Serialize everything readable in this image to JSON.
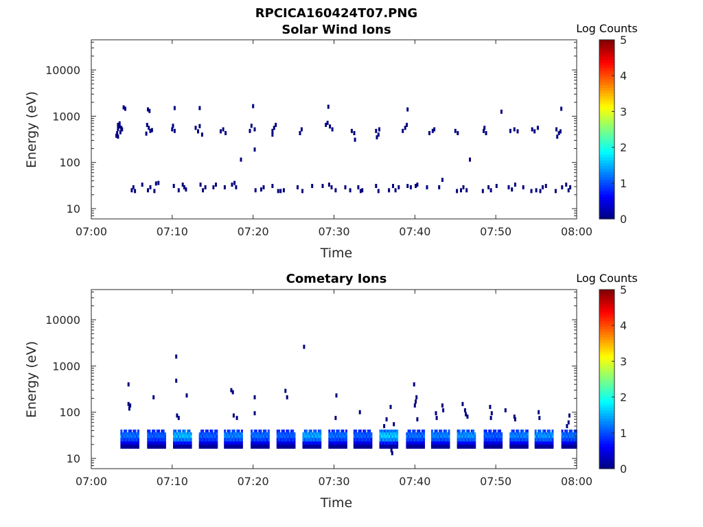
{
  "figure": {
    "filename": "RPCICA160424T07.PNG"
  },
  "colors": {
    "colormap": [
      "#00007f",
      "#0000ff",
      "#007fff",
      "#00ffff",
      "#7fff7f",
      "#ffff00",
      "#ff7f00",
      "#ff0000",
      "#7f0000"
    ],
    "axis": "#262626"
  },
  "chart_data": [
    {
      "type": "heatmap",
      "title": "Solar Wind Ions",
      "xlabel": "Time",
      "ylabel": "Energy (eV)",
      "x_ticks": [
        "07:00",
        "07:10",
        "07:20",
        "07:30",
        "07:40",
        "07:50",
        "08:00"
      ],
      "xlim_minutes": [
        0,
        60
      ],
      "y_scale": "log",
      "ylim": [
        6,
        45000
      ],
      "y_ticks": [
        {
          "value": 10,
          "label": "10"
        },
        {
          "value": 100,
          "label": "100"
        },
        {
          "value": 1000,
          "label": "1000"
        },
        {
          "value": 10000,
          "label": "10000"
        }
      ],
      "colorbar": {
        "label": "Log Counts",
        "range": [
          0,
          5
        ],
        "ticks": [
          "0",
          "1",
          "2",
          "3",
          "4",
          "5"
        ]
      },
      "cells": [
        [
          3.1,
          380,
          0
        ],
        [
          3.2,
          430,
          0
        ],
        [
          3.3,
          530,
          0
        ],
        [
          3.3,
          650,
          0
        ],
        [
          3.5,
          600,
          0
        ],
        [
          3.6,
          450,
          0
        ],
        [
          3.5,
          700,
          0
        ],
        [
          3.8,
          520,
          0
        ],
        [
          4.0,
          1550,
          0
        ],
        [
          4.2,
          1450,
          0
        ],
        [
          3.3,
          360,
          0
        ],
        [
          3.7,
          560,
          0
        ],
        [
          6.8,
          420,
          0
        ],
        [
          6.9,
          650,
          0
        ],
        [
          7.1,
          560,
          0
        ],
        [
          7.3,
          480,
          0
        ],
        [
          7.5,
          500,
          0
        ],
        [
          7.0,
          1400,
          0
        ],
        [
          7.2,
          1300,
          0
        ],
        [
          10.0,
          520,
          0
        ],
        [
          10.3,
          480,
          0
        ],
        [
          10.1,
          620,
          0
        ],
        [
          10.3,
          1500,
          0
        ],
        [
          12.9,
          560,
          0
        ],
        [
          13.2,
          470,
          0
        ],
        [
          13.4,
          610,
          0
        ],
        [
          13.7,
          400,
          0
        ],
        [
          13.4,
          1500,
          0
        ],
        [
          16.0,
          470,
          0
        ],
        [
          16.3,
          520,
          0
        ],
        [
          16.6,
          430,
          0
        ],
        [
          19.6,
          480,
          0
        ],
        [
          19.8,
          620,
          0
        ],
        [
          20.2,
          520,
          0
        ],
        [
          20.0,
          1650,
          0
        ],
        [
          20.2,
          190,
          0
        ],
        [
          18.5,
          115,
          0
        ],
        [
          22.4,
          480,
          0
        ],
        [
          22.6,
          560,
          0
        ],
        [
          22.8,
          650,
          0
        ],
        [
          22.4,
          400,
          0
        ],
        [
          25.8,
          430,
          0
        ],
        [
          26.0,
          520,
          0
        ],
        [
          29.0,
          650,
          0
        ],
        [
          29.2,
          720,
          0
        ],
        [
          29.5,
          600,
          0
        ],
        [
          29.8,
          520,
          0
        ],
        [
          29.3,
          1600,
          0
        ],
        [
          32.2,
          480,
          0
        ],
        [
          32.5,
          430,
          0
        ],
        [
          32.6,
          310,
          0
        ],
        [
          35.2,
          480,
          0
        ],
        [
          35.5,
          400,
          0
        ],
        [
          35.6,
          520,
          0
        ],
        [
          35.3,
          350,
          0
        ],
        [
          38.5,
          480,
          0
        ],
        [
          38.8,
          560,
          0
        ],
        [
          39.0,
          650,
          0
        ],
        [
          39.1,
          1400,
          0
        ],
        [
          41.8,
          430,
          0
        ],
        [
          42.2,
          480,
          0
        ],
        [
          42.4,
          520,
          0
        ],
        [
          45.0,
          480,
          0
        ],
        [
          45.3,
          430,
          0
        ],
        [
          46.8,
          115,
          0
        ],
        [
          48.5,
          480,
          0
        ],
        [
          48.8,
          430,
          0
        ],
        [
          48.6,
          560,
          0
        ],
        [
          50.7,
          1250,
          0
        ],
        [
          51.8,
          480,
          0
        ],
        [
          52.3,
          520,
          0
        ],
        [
          52.7,
          470,
          0
        ],
        [
          54.5,
          520,
          0
        ],
        [
          54.8,
          470,
          0
        ],
        [
          55.2,
          560,
          0
        ],
        [
          57.5,
          520,
          0
        ],
        [
          57.8,
          430,
          0
        ],
        [
          58.0,
          470,
          0
        ],
        [
          57.6,
          360,
          0
        ],
        [
          58.1,
          1450,
          0
        ],
        [
          5.0,
          25,
          0
        ],
        [
          5.2,
          29,
          0
        ],
        [
          5.4,
          24,
          0
        ],
        [
          6.3,
          33,
          0
        ],
        [
          7.0,
          25,
          0
        ],
        [
          7.3,
          29,
          0
        ],
        [
          7.8,
          24,
          0
        ],
        [
          8.0,
          35,
          0
        ],
        [
          8.3,
          36,
          0
        ],
        [
          10.2,
          31,
          0
        ],
        [
          10.8,
          25,
          0
        ],
        [
          11.3,
          33,
          0
        ],
        [
          11.5,
          29,
          0
        ],
        [
          11.7,
          26,
          0
        ],
        [
          13.5,
          33,
          0
        ],
        [
          13.8,
          25,
          0
        ],
        [
          14.1,
          29,
          0
        ],
        [
          15.1,
          29,
          0
        ],
        [
          15.4,
          33,
          0
        ],
        [
          16.5,
          29,
          0
        ],
        [
          17.4,
          33,
          0
        ],
        [
          17.7,
          36,
          0
        ],
        [
          17.9,
          29,
          0
        ],
        [
          20.3,
          25,
          0
        ],
        [
          21.0,
          26,
          0
        ],
        [
          21.3,
          29,
          0
        ],
        [
          22.4,
          31,
          0
        ],
        [
          23.1,
          24,
          0
        ],
        [
          23.4,
          24,
          0
        ],
        [
          23.8,
          25,
          0
        ],
        [
          25.5,
          29,
          0
        ],
        [
          26.1,
          24,
          0
        ],
        [
          27.3,
          31,
          0
        ],
        [
          28.6,
          31,
          0
        ],
        [
          29.4,
          33,
          0
        ],
        [
          29.7,
          29,
          0
        ],
        [
          30.2,
          25,
          0
        ],
        [
          31.4,
          29,
          0
        ],
        [
          32.0,
          25,
          0
        ],
        [
          33.0,
          29,
          0
        ],
        [
          33.3,
          24,
          0
        ],
        [
          33.5,
          25,
          0
        ],
        [
          35.2,
          31,
          0
        ],
        [
          35.5,
          24,
          0
        ],
        [
          36.8,
          25,
          0
        ],
        [
          37.3,
          31,
          0
        ],
        [
          37.6,
          25,
          0
        ],
        [
          38.0,
          29,
          0
        ],
        [
          39.1,
          31,
          0
        ],
        [
          39.5,
          29,
          0
        ],
        [
          40.1,
          31,
          0
        ],
        [
          40.3,
          33,
          0
        ],
        [
          41.5,
          29,
          0
        ],
        [
          43.0,
          29,
          0
        ],
        [
          43.4,
          42,
          0
        ],
        [
          45.2,
          24,
          0
        ],
        [
          45.7,
          25,
          0
        ],
        [
          46.0,
          29,
          0
        ],
        [
          46.4,
          25,
          0
        ],
        [
          48.4,
          24,
          0
        ],
        [
          49.1,
          29,
          0
        ],
        [
          49.4,
          25,
          0
        ],
        [
          50.1,
          31,
          0
        ],
        [
          51.6,
          29,
          0
        ],
        [
          52.0,
          26,
          0
        ],
        [
          52.4,
          33,
          0
        ],
        [
          53.4,
          29,
          0
        ],
        [
          54.4,
          24,
          0
        ],
        [
          55.0,
          25,
          0
        ],
        [
          55.5,
          24,
          0
        ],
        [
          55.8,
          29,
          0
        ],
        [
          56.2,
          31,
          0
        ],
        [
          57.4,
          24,
          0
        ],
        [
          58.2,
          29,
          0
        ],
        [
          58.7,
          33,
          0
        ],
        [
          59.0,
          25,
          0
        ],
        [
          59.2,
          29,
          0
        ]
      ]
    },
    {
      "type": "heatmap",
      "title": "Cometary Ions",
      "xlabel": "Time",
      "ylabel": "Energy (eV)",
      "x_ticks": [
        "07:00",
        "07:10",
        "07:20",
        "07:30",
        "07:40",
        "07:50",
        "08:00"
      ],
      "xlim_minutes": [
        0,
        60
      ],
      "y_scale": "log",
      "ylim": [
        6,
        45000
      ],
      "y_ticks": [
        {
          "value": 10,
          "label": "10"
        },
        {
          "value": 100,
          "label": "100"
        },
        {
          "value": 1000,
          "label": "1000"
        },
        {
          "value": 10000,
          "label": "10000"
        }
      ],
      "colorbar": {
        "label": "Log Counts",
        "range": [
          0,
          5
        ],
        "ticks": [
          "0",
          "1",
          "2",
          "3",
          "4",
          "5"
        ]
      },
      "blocks": [
        {
          "start": 3.6,
          "end": 5.8,
          "peak": 1.3
        },
        {
          "start": 6.9,
          "end": 9.1,
          "peak": 1.2
        },
        {
          "start": 10.1,
          "end": 12.2,
          "peak": 1.7
        },
        {
          "start": 13.3,
          "end": 15.4,
          "peak": 1.2
        },
        {
          "start": 16.4,
          "end": 18.6,
          "peak": 1.4
        },
        {
          "start": 19.7,
          "end": 21.8,
          "peak": 1.3
        },
        {
          "start": 22.9,
          "end": 25.0,
          "peak": 1.2
        },
        {
          "start": 26.1,
          "end": 28.2,
          "peak": 1.6
        },
        {
          "start": 29.3,
          "end": 31.4,
          "peak": 1.3
        },
        {
          "start": 32.4,
          "end": 34.5,
          "peak": 1.2
        },
        {
          "start": 35.6,
          "end": 37.8,
          "peak": 1.8
        },
        {
          "start": 38.9,
          "end": 41.0,
          "peak": 1.3
        },
        {
          "start": 42.0,
          "end": 44.2,
          "peak": 1.4
        },
        {
          "start": 45.2,
          "end": 47.4,
          "peak": 1.5
        },
        {
          "start": 48.5,
          "end": 50.6,
          "peak": 1.2
        },
        {
          "start": 51.7,
          "end": 53.8,
          "peak": 1.4
        },
        {
          "start": 54.8,
          "end": 57.0,
          "peak": 1.5
        },
        {
          "start": 58.1,
          "end": 59.9,
          "peak": 1.3
        }
      ],
      "cells": [
        [
          4.6,
          400,
          0
        ],
        [
          4.6,
          150,
          0
        ],
        [
          4.8,
          140,
          0
        ],
        [
          4.7,
          120,
          0
        ],
        [
          7.7,
          210,
          0
        ],
        [
          10.5,
          1600,
          0
        ],
        [
          10.5,
          480,
          0
        ],
        [
          10.6,
          85,
          0
        ],
        [
          10.8,
          75,
          0
        ],
        [
          11.8,
          230,
          0
        ],
        [
          17.3,
          300,
          0
        ],
        [
          17.5,
          270,
          0
        ],
        [
          17.6,
          85,
          0
        ],
        [
          18.0,
          75,
          0
        ],
        [
          20.2,
          210,
          0
        ],
        [
          20.2,
          95,
          0
        ],
        [
          24.0,
          290,
          0
        ],
        [
          24.2,
          210,
          0
        ],
        [
          26.3,
          2600,
          0
        ],
        [
          30.3,
          230,
          0
        ],
        [
          30.2,
          75,
          0
        ],
        [
          33.2,
          100,
          0
        ],
        [
          36.2,
          50,
          0
        ],
        [
          36.5,
          70,
          0
        ],
        [
          37.0,
          130,
          0
        ],
        [
          37.2,
          13,
          0
        ],
        [
          37.1,
          15,
          0
        ],
        [
          37.4,
          55,
          0
        ],
        [
          39.9,
          400,
          0
        ],
        [
          40.2,
          210,
          0
        ],
        [
          40.1,
          170,
          0
        ],
        [
          40.3,
          70,
          0
        ],
        [
          40.0,
          140,
          0
        ],
        [
          42.6,
          95,
          0
        ],
        [
          42.7,
          75,
          0
        ],
        [
          43.4,
          140,
          0
        ],
        [
          43.5,
          110,
          0
        ],
        [
          45.9,
          150,
          0
        ],
        [
          46.2,
          110,
          0
        ],
        [
          46.3,
          90,
          0
        ],
        [
          46.5,
          80,
          0
        ],
        [
          49.3,
          130,
          0
        ],
        [
          49.5,
          95,
          0
        ],
        [
          49.4,
          75,
          0
        ],
        [
          51.2,
          110,
          0
        ],
        [
          52.3,
          80,
          0
        ],
        [
          52.4,
          70,
          0
        ],
        [
          55.3,
          100,
          0
        ],
        [
          55.4,
          75,
          0
        ],
        [
          58.8,
          50,
          0
        ],
        [
          59.1,
          85,
          0
        ],
        [
          59.0,
          60,
          0
        ]
      ]
    }
  ]
}
